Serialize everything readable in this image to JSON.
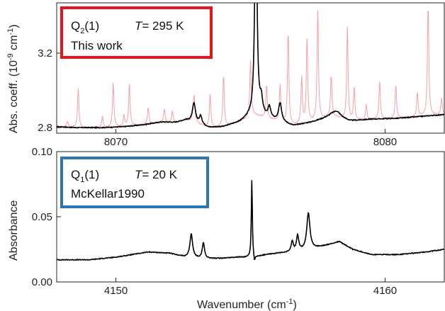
{
  "chart_data": [
    {
      "type": "line",
      "xlim": [
        8067.8,
        8082.2
      ],
      "ylim": [
        2.77,
        3.47
      ],
      "y_ticks": [
        2.8,
        3.2
      ],
      "y_tick_labels": [
        "2.8",
        "3.2"
      ],
      "x_ticks": [
        8070,
        8080
      ],
      "x_tick_labels": [
        "8070",
        "8080"
      ],
      "ylabel": "Abs. coeff. (10",
      "ylabel_exp": "-9",
      "ylabel_tail": " cm",
      "ylabel_exp2": "-1",
      "ylabel_end": ")",
      "legend": {
        "label_main": "Q",
        "label_sub": "2",
        "label_rest": "(1)",
        "temp_label": "T",
        "temp_value": "= 295 K",
        "source": "This work",
        "border_color": "#e8141c"
      },
      "baseline": [
        [
          8067.8,
          2.805
        ],
        [
          8068.5,
          2.8
        ],
        [
          8069.5,
          2.8
        ],
        [
          8070.3,
          2.805
        ],
        [
          8071.0,
          2.815
        ],
        [
          8071.7,
          2.83
        ],
        [
          8072.2,
          2.828
        ],
        [
          8072.6,
          2.84
        ],
        [
          8073.0,
          2.82
        ],
        [
          8073.5,
          2.8
        ],
        [
          8074.0,
          2.805
        ],
        [
          8074.6,
          2.83
        ],
        [
          8075.1,
          2.87
        ],
        [
          8075.6,
          2.85
        ],
        [
          8076.1,
          2.83
        ],
        [
          8076.6,
          2.81
        ],
        [
          8077.3,
          2.83
        ],
        [
          8078.0,
          2.86
        ],
        [
          8078.7,
          2.835
        ],
        [
          8079.5,
          2.845
        ],
        [
          8080.5,
          2.85
        ],
        [
          8081.5,
          2.862
        ],
        [
          8082.2,
          2.87
        ]
      ],
      "series": [
        {
          "color": "#000000",
          "peaks": [
            [
              8072.9,
              0.105,
              0.07
            ],
            [
              8073.15,
              0.045,
              0.06
            ],
            [
              8075.2,
              1.3,
              0.045
            ],
            [
              8075.4,
              0.08,
              0.06
            ],
            [
              8075.7,
              0.06,
              0.06
            ],
            [
              8076.1,
              0.1,
              0.07
            ],
            [
              8078.2,
              0.035,
              0.2
            ]
          ]
        },
        {
          "color": "#f4a0a6",
          "peaks": [
            [
              8068.2,
              0.03,
              0.04
            ],
            [
              8068.6,
              0.21,
              0.03
            ],
            [
              8069.5,
              0.06,
              0.03
            ],
            [
              8069.9,
              0.24,
              0.03
            ],
            [
              8070.3,
              0.06,
              0.03
            ],
            [
              8070.5,
              0.23,
              0.03
            ],
            [
              8071.2,
              0.09,
              0.03
            ],
            [
              8071.8,
              0.07,
              0.03
            ],
            [
              8072.1,
              0.06,
              0.03
            ],
            [
              8072.9,
              0.15,
              0.04
            ],
            [
              8073.5,
              0.18,
              0.03
            ],
            [
              8074.0,
              0.28,
              0.03
            ],
            [
              8075.0,
              0.3,
              0.03
            ],
            [
              8075.6,
              0.18,
              0.03
            ],
            [
              8076.1,
              0.2,
              0.03
            ],
            [
              8076.4,
              0.5,
              0.03
            ],
            [
              8076.9,
              0.25,
              0.03
            ],
            [
              8077.1,
              0.45,
              0.03
            ],
            [
              8077.5,
              0.6,
              0.03
            ],
            [
              8078.0,
              0.22,
              0.03
            ],
            [
              8078.6,
              0.5,
              0.03
            ],
            [
              8078.85,
              0.18,
              0.03
            ],
            [
              8079.3,
              0.08,
              0.03
            ],
            [
              8079.8,
              0.2,
              0.03
            ],
            [
              8080.4,
              0.18,
              0.03
            ],
            [
              8081.2,
              0.13,
              0.03
            ],
            [
              8081.6,
              0.6,
              0.03
            ],
            [
              8082.1,
              0.09,
              0.03
            ]
          ]
        }
      ]
    },
    {
      "type": "line",
      "xlim": [
        4147.8,
        4162.2
      ],
      "ylim": [
        0.0,
        0.1
      ],
      "y_ticks": [
        0.0,
        0.05,
        0.1
      ],
      "y_tick_labels": [
        "0.00",
        "0.05",
        "0.10"
      ],
      "x_ticks": [
        4150,
        4160
      ],
      "x_tick_labels": [
        "4150",
        "4160"
      ],
      "xlabel": "Wavenumber (cm",
      "xlabel_exp": "-1",
      "xlabel_end": ")",
      "ylabel": "Absorbance",
      "legend": {
        "label_main": "Q",
        "label_sub": "1",
        "label_rest": "(1)",
        "temp_label": "T",
        "temp_value": "= 20 K",
        "source": "McKellar1990",
        "border_color": "#2e75b6"
      },
      "baseline": [
        [
          4147.8,
          0.017
        ],
        [
          4149.0,
          0.017
        ],
        [
          4150.0,
          0.019
        ],
        [
          4151.2,
          0.023
        ],
        [
          4152.0,
          0.022
        ],
        [
          4152.6,
          0.019
        ],
        [
          4153.2,
          0.018
        ],
        [
          4153.8,
          0.018
        ],
        [
          4154.5,
          0.019
        ],
        [
          4155.1,
          0.019
        ],
        [
          4155.6,
          0.021
        ],
        [
          4156.0,
          0.022
        ],
        [
          4156.6,
          0.023
        ],
        [
          4157.2,
          0.025
        ],
        [
          4157.8,
          0.028
        ],
        [
          4158.3,
          0.031
        ],
        [
          4158.8,
          0.025
        ],
        [
          4159.5,
          0.021
        ],
        [
          4160.5,
          0.021
        ],
        [
          4161.5,
          0.023
        ],
        [
          4162.2,
          0.025
        ]
      ],
      "series": [
        {
          "color": "#000000",
          "peaks": [
            [
              4152.8,
              0.018,
              0.06
            ],
            [
              4153.25,
              0.012,
              0.05
            ],
            [
              4155.05,
              0.06,
              0.022
            ],
            [
              4155.15,
              -0.005,
              0.03
            ],
            [
              4156.55,
              0.008,
              0.05
            ],
            [
              4156.75,
              0.012,
              0.05
            ],
            [
              4157.15,
              0.028,
              0.07
            ]
          ]
        }
      ]
    }
  ]
}
